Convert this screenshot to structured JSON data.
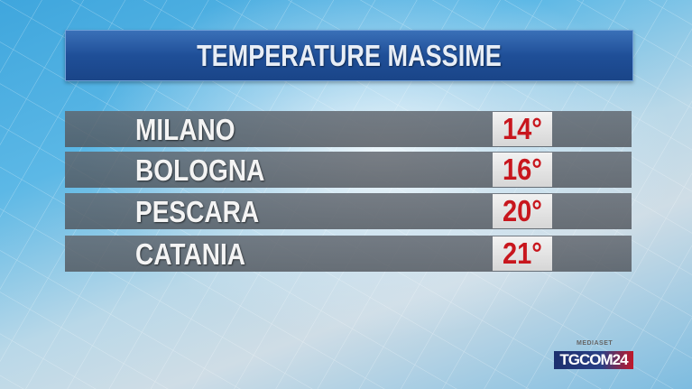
{
  "title": "TEMPERATURE MASSIME",
  "rows": [
    {
      "city": "MILANO",
      "temp": "14°"
    },
    {
      "city": "BOLOGNA",
      "temp": "16°"
    },
    {
      "city": "PESCARA",
      "temp": "20°"
    },
    {
      "city": "CATANIA",
      "temp": "21°"
    }
  ],
  "logo": {
    "network": "MEDIASET",
    "part1": "TG",
    "part2": "COM",
    "part3": "24"
  },
  "colors": {
    "title_bar": "#1f4f98",
    "temp_text": "#c8161d",
    "row_bg": "#5f646c"
  }
}
